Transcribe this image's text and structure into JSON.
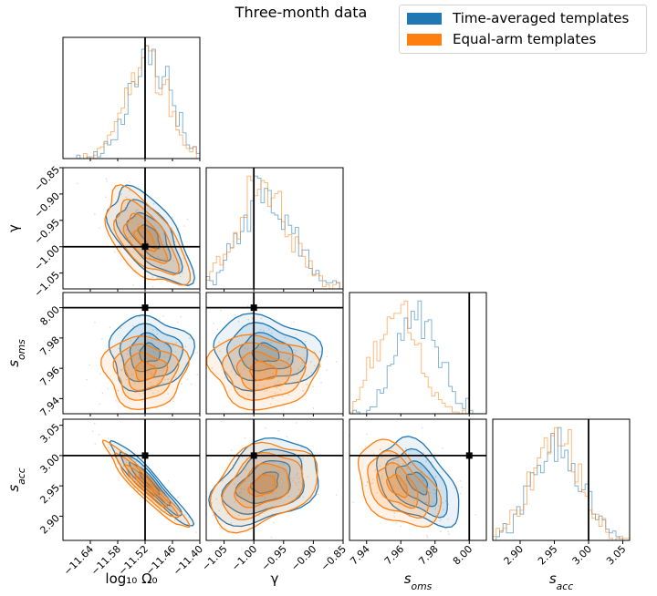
{
  "title": "Three-month data",
  "chart_data": {
    "type": "corner",
    "title": "Three-month data",
    "legend_position": "top-right",
    "series": [
      {
        "name": "Time-averaged templates",
        "color": "#1f77b4"
      },
      {
        "name": "Equal-arm templates",
        "color": "#ff7f0e"
      }
    ],
    "parameters": [
      {
        "key": "logO",
        "label": "log₁₀ Ω₀",
        "truth": -11.52,
        "range": [
          -11.7,
          -11.4
        ],
        "ticks": [
          -11.64,
          -11.58,
          -11.52,
          -11.46,
          -11.4
        ],
        "tick_labels": [
          "−11.64",
          "−11.58",
          "−11.52",
          "−11.46",
          "−11.40"
        ]
      },
      {
        "key": "gamma",
        "label": "γ",
        "truth": -1.0,
        "range": [
          -1.08,
          -0.85
        ],
        "ticks": [
          -1.05,
          -1.0,
          -0.95,
          -0.9,
          -0.85
        ],
        "tick_labels": [
          "−1.05",
          "−1.00",
          "−0.95",
          "−0.90",
          "−0.85"
        ]
      },
      {
        "key": "soms",
        "label": "s",
        "label_sub": "oms",
        "truth": 8.0,
        "range": [
          7.93,
          8.01
        ],
        "ticks": [
          7.94,
          7.96,
          7.98,
          8.0
        ],
        "tick_labels": [
          "7.94",
          "7.96",
          "7.98",
          "8.00"
        ]
      },
      {
        "key": "sacc",
        "label": "s",
        "label_sub": "acc",
        "truth": 3.0,
        "range": [
          2.86,
          3.06
        ],
        "ticks": [
          2.9,
          2.95,
          3.0,
          3.05
        ],
        "tick_labels": [
          "2.90",
          "2.95",
          "3.00",
          "3.05"
        ]
      }
    ],
    "posteriors": {
      "Time-averaged templates": {
        "logO": {
          "mean": -11.51,
          "sd": 0.045
        },
        "gamma": {
          "mean": -0.98,
          "sd": 0.045
        },
        "soms": {
          "mean": 7.97,
          "sd": 0.012
        },
        "sacc": {
          "mean": 2.955,
          "sd": 0.035
        }
      },
      "Equal-arm templates": {
        "logO": {
          "mean": -11.52,
          "sd": 0.045
        },
        "gamma": {
          "mean": -0.985,
          "sd": 0.045
        },
        "soms": {
          "mean": 7.958,
          "sd": 0.012
        },
        "sacc": {
          "mean": 2.95,
          "sd": 0.035
        }
      }
    },
    "correlations": {
      "logO-gamma": -0.6,
      "logO-sacc": -0.95,
      "gamma-sacc": 0.35,
      "soms-sacc": -0.45,
      "logO-soms": 0.0,
      "gamma-soms": -0.1
    },
    "contour_levels_sigma": [
      0.5,
      1.0,
      1.5,
      2.0
    ]
  }
}
